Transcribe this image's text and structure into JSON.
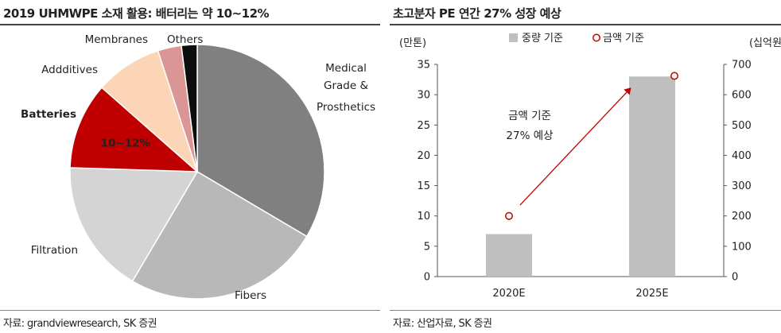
{
  "left": {
    "title": "2019 UHMWPE 소재 활용: 배터리는 약 10~12%",
    "source": "자료: grandviewresearch, SK 증권"
  },
  "right": {
    "title": "초고분자 PE 연간 27% 성장 예상",
    "source": "자료: 산업자료, SK 증권"
  },
  "chart_data": [
    {
      "type": "pie",
      "title": "2019 UHMWPE 소재 활용: 배터리는 약 10~12%",
      "slices": [
        {
          "label": "Medical Grade & Prosthetics",
          "value": 33.5,
          "color": "#808080"
        },
        {
          "label": "Fibers",
          "value": 25,
          "color": "#b8b8b8"
        },
        {
          "label": "Filtration",
          "value": 17,
          "color": "#d4d4d4"
        },
        {
          "label": "Batteries",
          "value": 11,
          "color": "#c00000",
          "inner_label": "10~12%"
        },
        {
          "label": "Addditives",
          "value": 8.5,
          "color": "#fbd5b5"
        },
        {
          "label": "Membranes",
          "value": 3,
          "color": "#d99694"
        },
        {
          "label": "Others",
          "value": 2,
          "color": "#0d0d0d"
        }
      ],
      "highlight_color": "#c00000"
    },
    {
      "type": "bar",
      "title": "초고분자 PE 연간 27% 성장 예상",
      "categories": [
        "2020E",
        "2025E"
      ],
      "series": [
        {
          "name": "중량 기준",
          "type": "bar",
          "axis": "left",
          "values": [
            7,
            33
          ],
          "color": "#bfbfbf"
        },
        {
          "name": "금액 기준",
          "type": "scatter",
          "axis": "right",
          "values": [
            200,
            662
          ],
          "color": "#c00000"
        }
      ],
      "ylabel_left": "(만톤)",
      "ylabel_right": "(십억원)",
      "ylim_left": [
        0,
        35
      ],
      "yticks_left": [
        0,
        5,
        10,
        15,
        20,
        25,
        30,
        35
      ],
      "ylim_right": [
        0,
        700
      ],
      "yticks_right": [
        0,
        100,
        200,
        300,
        400,
        500,
        600,
        700
      ],
      "legend_position": "top",
      "annotation": {
        "line1": "금액 기준",
        "line2": "27% 예상",
        "arrow_from": [
          "2020E",
          210
        ],
        "arrow_to": [
          "2025E",
          595
        ]
      }
    }
  ]
}
